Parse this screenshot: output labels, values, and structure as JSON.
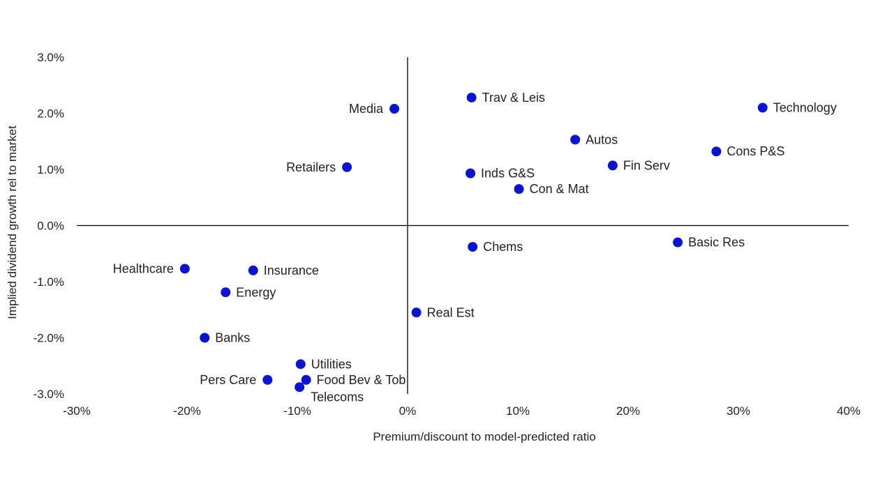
{
  "chart_data": {
    "type": "scatter",
    "title": "",
    "xlabel": "Premium/discount to model-predicted ratio",
    "ylabel": "Implied dividend growth rel to market",
    "xlim": [
      -30,
      40
    ],
    "ylim": [
      -3,
      3
    ],
    "x_ticks": [
      {
        "value": -30,
        "label": "-30%"
      },
      {
        "value": -20,
        "label": "-20%"
      },
      {
        "value": -10,
        "label": "-10%"
      },
      {
        "value": 0,
        "label": "0%"
      },
      {
        "value": 10,
        "label": "10%"
      },
      {
        "value": 20,
        "label": "20%"
      },
      {
        "value": 30,
        "label": "30%"
      },
      {
        "value": 40,
        "label": "40%"
      }
    ],
    "y_ticks": [
      {
        "value": 3,
        "label": "3.0%"
      },
      {
        "value": 2,
        "label": "2.0%"
      },
      {
        "value": 1,
        "label": "1.0%"
      },
      {
        "value": 0,
        "label": "0.0%"
      },
      {
        "value": -1,
        "label": "-1.0%"
      },
      {
        "value": -2,
        "label": "-2.0%"
      },
      {
        "value": -3,
        "label": "-3.0%"
      }
    ],
    "grid": false,
    "legend": "none",
    "marker_color": "#0a14c8",
    "points": [
      {
        "label": "Technology",
        "x": 32.2,
        "y": 2.1,
        "label_side": "right"
      },
      {
        "label": "Trav & Leis",
        "x": 5.8,
        "y": 2.28,
        "label_side": "right"
      },
      {
        "label": "Media",
        "x": -1.2,
        "y": 2.08,
        "label_side": "left"
      },
      {
        "label": "Autos",
        "x": 15.2,
        "y": 1.53,
        "label_side": "right"
      },
      {
        "label": "Cons P&S",
        "x": 28.0,
        "y": 1.32,
        "label_side": "right"
      },
      {
        "label": "Fin Serv",
        "x": 18.6,
        "y": 1.07,
        "label_side": "right"
      },
      {
        "label": "Retailers",
        "x": -5.5,
        "y": 1.04,
        "label_side": "left"
      },
      {
        "label": "Inds G&S",
        "x": 5.7,
        "y": 0.93,
        "label_side": "right"
      },
      {
        "label": "Con & Mat",
        "x": 10.1,
        "y": 0.65,
        "label_side": "right"
      },
      {
        "label": "Basic Res",
        "x": 24.5,
        "y": -0.3,
        "label_side": "right"
      },
      {
        "label": "Chems",
        "x": 5.9,
        "y": -0.38,
        "label_side": "right"
      },
      {
        "label": "Healthcare",
        "x": -20.2,
        "y": -0.77,
        "label_side": "left"
      },
      {
        "label": "Insurance",
        "x": -14.0,
        "y": -0.8,
        "label_side": "right"
      },
      {
        "label": "Energy",
        "x": -16.5,
        "y": -1.19,
        "label_side": "right"
      },
      {
        "label": "Real Est",
        "x": 0.8,
        "y": -1.55,
        "label_side": "right"
      },
      {
        "label": "Banks",
        "x": -18.4,
        "y": -2.0,
        "label_side": "right"
      },
      {
        "label": "Utilities",
        "x": -9.7,
        "y": -2.47,
        "label_side": "right"
      },
      {
        "label": "Pers Care",
        "x": -12.7,
        "y": -2.75,
        "label_side": "left"
      },
      {
        "label": "Food Bev & Tob",
        "x": -9.2,
        "y": -2.75,
        "label_side": "right"
      },
      {
        "label": "Telecoms",
        "x": -9.8,
        "y": -2.88,
        "label_side": "below"
      }
    ]
  }
}
